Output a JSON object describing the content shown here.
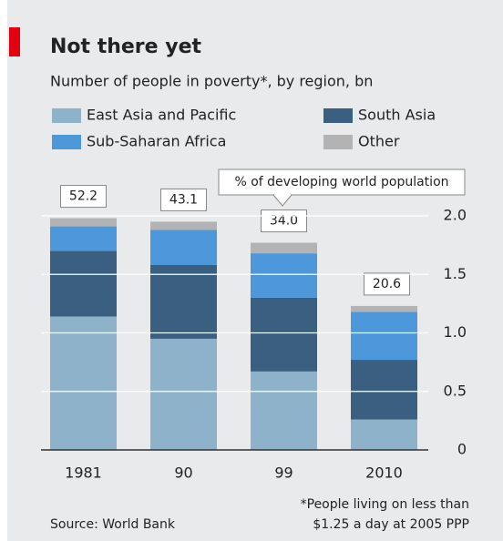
{
  "chart_data": {
    "type": "stacked_bar",
    "title": "Not there yet",
    "subtitle": "Number of people in poverty*, by region, bn",
    "categories": [
      "1981",
      "90",
      "99",
      "2010"
    ],
    "series": [
      {
        "name": "East Asia and Pacific",
        "color": "#8fb2cb",
        "values": [
          1.14,
          0.95,
          0.67,
          0.26
        ]
      },
      {
        "name": "South Asia",
        "color": "#3b5f80",
        "values": [
          0.56,
          0.63,
          0.63,
          0.51
        ]
      },
      {
        "name": "Sub-Saharan Africa",
        "color": "#4d98da",
        "values": [
          0.21,
          0.3,
          0.38,
          0.41
        ]
      },
      {
        "name": "Other",
        "color": "#b3b3b3",
        "values": [
          0.07,
          0.07,
          0.09,
          0.05
        ]
      }
    ],
    "share_title": "% of developing world population",
    "share_values": [
      {
        "value": 52.2,
        "label": "52.2"
      },
      {
        "value": 43.1,
        "label": "43.1"
      },
      {
        "value": 34.0,
        "label": "34.0"
      },
      {
        "value": 20.6,
        "label": "20.6"
      }
    ],
    "ylim": [
      0,
      2.0
    ],
    "yticks": [
      0,
      0.5,
      {
        "value": 1.0,
        "label": "1.0"
      },
      1.5,
      {
        "value": 2.0,
        "label": "2.0"
      }
    ],
    "grid": true,
    "footnote": [
      "*People living on less than",
      "$1.25 a day at 2005 PPP"
    ],
    "source": "Source: World Bank"
  }
}
